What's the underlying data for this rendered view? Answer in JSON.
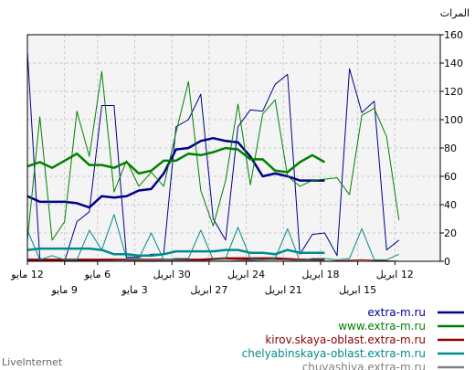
{
  "chart_data": {
    "type": "line",
    "y_axis_title": "المرات",
    "ylim": [
      0,
      160
    ],
    "y_ticks": [
      0,
      20,
      40,
      60,
      80,
      100,
      120,
      140,
      160
    ],
    "grid": true,
    "legend_position": "bottom-right",
    "x": [
      0,
      1,
      2,
      3,
      4,
      5,
      6,
      7,
      8,
      9,
      10,
      11,
      12,
      13,
      14,
      15,
      16,
      17,
      18,
      19,
      20,
      21,
      22,
      23,
      24,
      25,
      26,
      27,
      28,
      29,
      30,
      31,
      32,
      33,
      34,
      35,
      36,
      37,
      38,
      39,
      40,
      41,
      42,
      43,
      44,
      45,
      46,
      47,
      48,
      49,
      50,
      51,
      52,
      53,
      54,
      55,
      56,
      57,
      58,
      59,
      60,
      61,
      62,
      63,
      64,
      65,
      66,
      67,
      68,
      69,
      70,
      71,
      72,
      73,
      74,
      75,
      76,
      77,
      78,
      79,
      80,
      81,
      82,
      83,
      84,
      85,
      86,
      87,
      88,
      89,
      90,
      91,
      92,
      93,
      94,
      95,
      96,
      97,
      98,
      99,
      100
    ],
    "x_tick_labels": [
      {
        "x": 0,
        "label": "12 مايو",
        "row": 1
      },
      {
        "x": 9,
        "label": "9 مايو",
        "row": 2
      },
      {
        "x": 17,
        "label": "6 مايو",
        "row": 1
      },
      {
        "x": 26,
        "label": "3 مايو",
        "row": 2
      },
      {
        "x": 35,
        "label": "30 ابريل",
        "row": 1
      },
      {
        "x": 44,
        "label": "27 ابريل",
        "row": 2
      },
      {
        "x": 53,
        "label": "24 ابريل",
        "row": 1
      },
      {
        "x": 62,
        "label": "21 ابريل",
        "row": 2
      },
      {
        "x": 71,
        "label": "18 ابريل",
        "row": 1
      },
      {
        "x": 80,
        "label": "15 ابريل",
        "row": 2
      },
      {
        "x": 89,
        "label": "12 ابريل",
        "row": 1
      }
    ],
    "series": [
      {
        "name": "extra-m.ru",
        "color": "#00008b",
        "width": 2.5,
        "points": [
          [
            0,
            46
          ],
          [
            3,
            42
          ],
          [
            6,
            42
          ],
          [
            9,
            42
          ],
          [
            12,
            41
          ],
          [
            15,
            38
          ],
          [
            18,
            46
          ],
          [
            21,
            45
          ],
          [
            24,
            46
          ],
          [
            27,
            50
          ],
          [
            30,
            51
          ],
          [
            33,
            62
          ],
          [
            36,
            79
          ],
          [
            39,
            80
          ],
          [
            42,
            85
          ],
          [
            45,
            87
          ],
          [
            48,
            85
          ],
          [
            51,
            84
          ],
          [
            54,
            74
          ],
          [
            57,
            60
          ],
          [
            60,
            62
          ],
          [
            63,
            60
          ],
          [
            66,
            57
          ],
          [
            69,
            57
          ],
          [
            72,
            57
          ]
        ]
      },
      {
        "name": "extra-m.ru",
        "color": "#00008b",
        "width": 1,
        "points": [
          [
            0,
            148
          ],
          [
            3,
            2
          ],
          [
            6,
            0
          ],
          [
            9,
            0
          ],
          [
            12,
            28
          ],
          [
            15,
            35
          ],
          [
            18,
            110
          ],
          [
            21,
            110
          ],
          [
            24,
            3
          ],
          [
            27,
            3
          ],
          [
            30,
            5
          ],
          [
            33,
            5
          ],
          [
            36,
            95
          ],
          [
            39,
            100
          ],
          [
            42,
            118
          ],
          [
            45,
            30
          ],
          [
            48,
            15
          ],
          [
            51,
            95
          ],
          [
            54,
            107
          ],
          [
            57,
            106
          ],
          [
            60,
            125
          ],
          [
            63,
            132
          ],
          [
            66,
            5
          ],
          [
            69,
            19
          ],
          [
            72,
            20
          ],
          [
            75,
            4
          ],
          [
            78,
            136
          ],
          [
            81,
            105
          ],
          [
            84,
            113
          ],
          [
            87,
            8
          ],
          [
            90,
            15
          ]
        ]
      },
      {
        "name": "www.extra-m.ru",
        "color": "#008000",
        "width": 2.5,
        "points": [
          [
            0,
            67
          ],
          [
            3,
            70
          ],
          [
            6,
            66
          ],
          [
            9,
            71
          ],
          [
            12,
            76
          ],
          [
            15,
            68
          ],
          [
            18,
            68
          ],
          [
            21,
            66
          ],
          [
            24,
            70
          ],
          [
            27,
            62
          ],
          [
            30,
            64
          ],
          [
            33,
            71
          ],
          [
            36,
            71
          ],
          [
            39,
            76
          ],
          [
            42,
            75
          ],
          [
            45,
            77
          ],
          [
            48,
            80
          ],
          [
            51,
            79
          ],
          [
            54,
            72
          ],
          [
            57,
            72
          ],
          [
            60,
            64
          ],
          [
            63,
            63
          ],
          [
            66,
            70
          ],
          [
            69,
            75
          ],
          [
            72,
            70
          ]
        ]
      },
      {
        "name": "www.extra-m.ru",
        "color": "#008000",
        "width": 1,
        "points": [
          [
            0,
            15
          ],
          [
            3,
            102
          ],
          [
            6,
            15
          ],
          [
            9,
            28
          ],
          [
            12,
            106
          ],
          [
            15,
            74
          ],
          [
            18,
            134
          ],
          [
            21,
            49
          ],
          [
            24,
            71
          ],
          [
            27,
            53
          ],
          [
            30,
            63
          ],
          [
            33,
            53
          ],
          [
            36,
            91
          ],
          [
            39,
            127
          ],
          [
            42,
            50
          ],
          [
            45,
            25
          ],
          [
            48,
            57
          ],
          [
            51,
            111
          ],
          [
            54,
            54
          ],
          [
            57,
            104
          ],
          [
            60,
            114
          ],
          [
            63,
            60
          ],
          [
            66,
            53
          ],
          [
            69,
            57
          ],
          [
            72,
            58
          ],
          [
            75,
            59
          ],
          [
            78,
            47
          ],
          [
            81,
            103
          ],
          [
            84,
            108
          ],
          [
            87,
            88
          ],
          [
            90,
            29
          ]
        ]
      },
      {
        "name": "kirov.skaya-oblast.extra-m.ru",
        "color": "#8b0000",
        "width": 2.5,
        "points": [
          [
            0,
            1
          ],
          [
            6,
            1
          ],
          [
            12,
            1
          ],
          [
            18,
            1
          ],
          [
            24,
            1
          ],
          [
            30,
            1
          ],
          [
            36,
            1
          ],
          [
            42,
            1
          ],
          [
            48,
            2
          ],
          [
            54,
            2
          ],
          [
            60,
            2
          ],
          [
            66,
            1
          ],
          [
            72,
            1
          ]
        ]
      },
      {
        "name": "kirov.skaya-oblast.extra-m.ru",
        "color": "#8b0000",
        "width": 1,
        "points": [
          [
            0,
            0
          ],
          [
            9,
            0
          ],
          [
            18,
            1
          ],
          [
            27,
            0
          ],
          [
            36,
            0
          ],
          [
            45,
            2
          ],
          [
            54,
            1
          ],
          [
            63,
            2
          ],
          [
            72,
            0
          ],
          [
            81,
            1
          ],
          [
            90,
            0
          ]
        ]
      },
      {
        "name": "chelyabinskaya-oblast.extra-m.ru",
        "color": "#008b8b",
        "width": 2.5,
        "points": [
          [
            0,
            8
          ],
          [
            3,
            9
          ],
          [
            6,
            9
          ],
          [
            9,
            9
          ],
          [
            12,
            9
          ],
          [
            15,
            9
          ],
          [
            18,
            8
          ],
          [
            21,
            5
          ],
          [
            24,
            5
          ],
          [
            27,
            4
          ],
          [
            30,
            4
          ],
          [
            33,
            5
          ],
          [
            36,
            7
          ],
          [
            39,
            7
          ],
          [
            42,
            7
          ],
          [
            45,
            7
          ],
          [
            48,
            8
          ],
          [
            51,
            8
          ],
          [
            54,
            6
          ],
          [
            57,
            6
          ],
          [
            60,
            5
          ],
          [
            63,
            8
          ],
          [
            66,
            6
          ],
          [
            69,
            6
          ],
          [
            72,
            6
          ]
        ]
      },
      {
        "name": "chelyabinskaya-oblast.extra-m.ru",
        "color": "#008b8b",
        "width": 1,
        "points": [
          [
            0,
            22
          ],
          [
            3,
            1
          ],
          [
            6,
            4
          ],
          [
            9,
            1
          ],
          [
            12,
            1
          ],
          [
            15,
            22
          ],
          [
            18,
            8
          ],
          [
            21,
            33
          ],
          [
            24,
            2
          ],
          [
            27,
            2
          ],
          [
            30,
            20
          ],
          [
            33,
            1
          ],
          [
            36,
            2
          ],
          [
            39,
            2
          ],
          [
            42,
            22
          ],
          [
            45,
            1
          ],
          [
            48,
            2
          ],
          [
            51,
            24
          ],
          [
            54,
            2
          ],
          [
            57,
            1
          ],
          [
            60,
            2
          ],
          [
            63,
            23
          ],
          [
            66,
            0
          ],
          [
            69,
            2
          ],
          [
            72,
            2
          ],
          [
            75,
            1
          ],
          [
            78,
            2
          ],
          [
            81,
            23
          ],
          [
            84,
            1
          ],
          [
            87,
            1
          ],
          [
            90,
            5
          ]
        ]
      },
      {
        "name": "chuvashiya.extra-m.ru",
        "color": "#808080",
        "width": 1,
        "points": [
          [
            0,
            0
          ],
          [
            15,
            0
          ],
          [
            30,
            1
          ],
          [
            45,
            0
          ],
          [
            60,
            1
          ],
          [
            75,
            0
          ],
          [
            90,
            0
          ]
        ]
      }
    ],
    "legend": [
      {
        "label": "extra-m.ru",
        "color": "#00008b"
      },
      {
        "label": "www.extra-m.ru",
        "color": "#008000"
      },
      {
        "label": "kirov.skaya-oblast.extra-m.ru",
        "color": "#8b0000"
      },
      {
        "label": "chelyabinskaya-oblast.extra-m.ru",
        "color": "#008b8b"
      },
      {
        "label": "chuvashiya.extra-m.ru",
        "color": "#808080"
      }
    ]
  },
  "watermark": "LiveInternet"
}
